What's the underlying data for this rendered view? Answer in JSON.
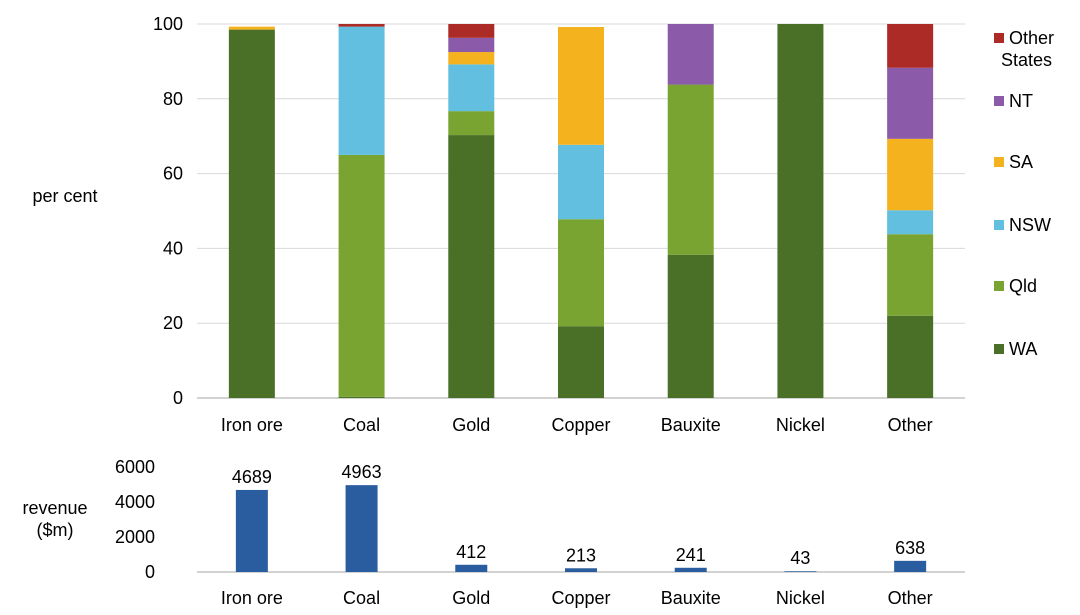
{
  "chart_data": [
    {
      "type": "bar",
      "stacked": true,
      "ylabel": "per cent",
      "ylim": [
        0,
        100
      ],
      "yticks": [
        "0",
        "20",
        "40",
        "60",
        "80",
        "100"
      ],
      "grid": true,
      "legend_position": "right",
      "categories": [
        "Iron ore",
        "Coal",
        "Gold",
        "Copper",
        "Bauxite",
        "Nickel",
        "Other"
      ],
      "series": [
        {
          "name": "WA",
          "color": "#4a7028",
          "values": [
            98.5,
            0.3,
            70.3,
            19.2,
            38.3,
            100,
            22
          ]
        },
        {
          "name": "Qld",
          "color": "#79a432",
          "values": [
            0,
            64.7,
            6.4,
            28.6,
            45.5,
            0,
            21.8
          ]
        },
        {
          "name": "NSW",
          "color": "#62bfdf",
          "values": [
            0,
            34.3,
            12.5,
            19.9,
            0,
            0,
            6.4
          ]
        },
        {
          "name": "SA",
          "color": "#f5b21f",
          "values": [
            0.8,
            0,
            3.3,
            31.5,
            0,
            0,
            19.1
          ]
        },
        {
          "name": "NT",
          "color": "#8b5aa8",
          "values": [
            0,
            0,
            3.8,
            0,
            16.2,
            0,
            19
          ]
        },
        {
          "name": "Other States",
          "color": "#ac2b26",
          "values": [
            0,
            0.7,
            3.7,
            0,
            0,
            0,
            11.7
          ]
        }
      ],
      "legend_order": [
        "Other States",
        "NT",
        "SA",
        "NSW",
        "Qld",
        "WA"
      ]
    },
    {
      "type": "bar",
      "ylabel": "revenue ($m)",
      "ylim": [
        0,
        6000
      ],
      "yticks": [
        "0",
        "2000",
        "4000",
        "6000"
      ],
      "grid": false,
      "color": "#2a5d9f",
      "categories": [
        "Iron ore",
        "Coal",
        "Gold",
        "Copper",
        "Bauxite",
        "Nickel",
        "Other"
      ],
      "values": [
        4689,
        4963,
        412,
        213,
        241,
        43,
        638
      ],
      "data_labels": [
        "4689",
        "4963",
        "412",
        "213",
        "241",
        "43",
        "638"
      ]
    }
  ]
}
